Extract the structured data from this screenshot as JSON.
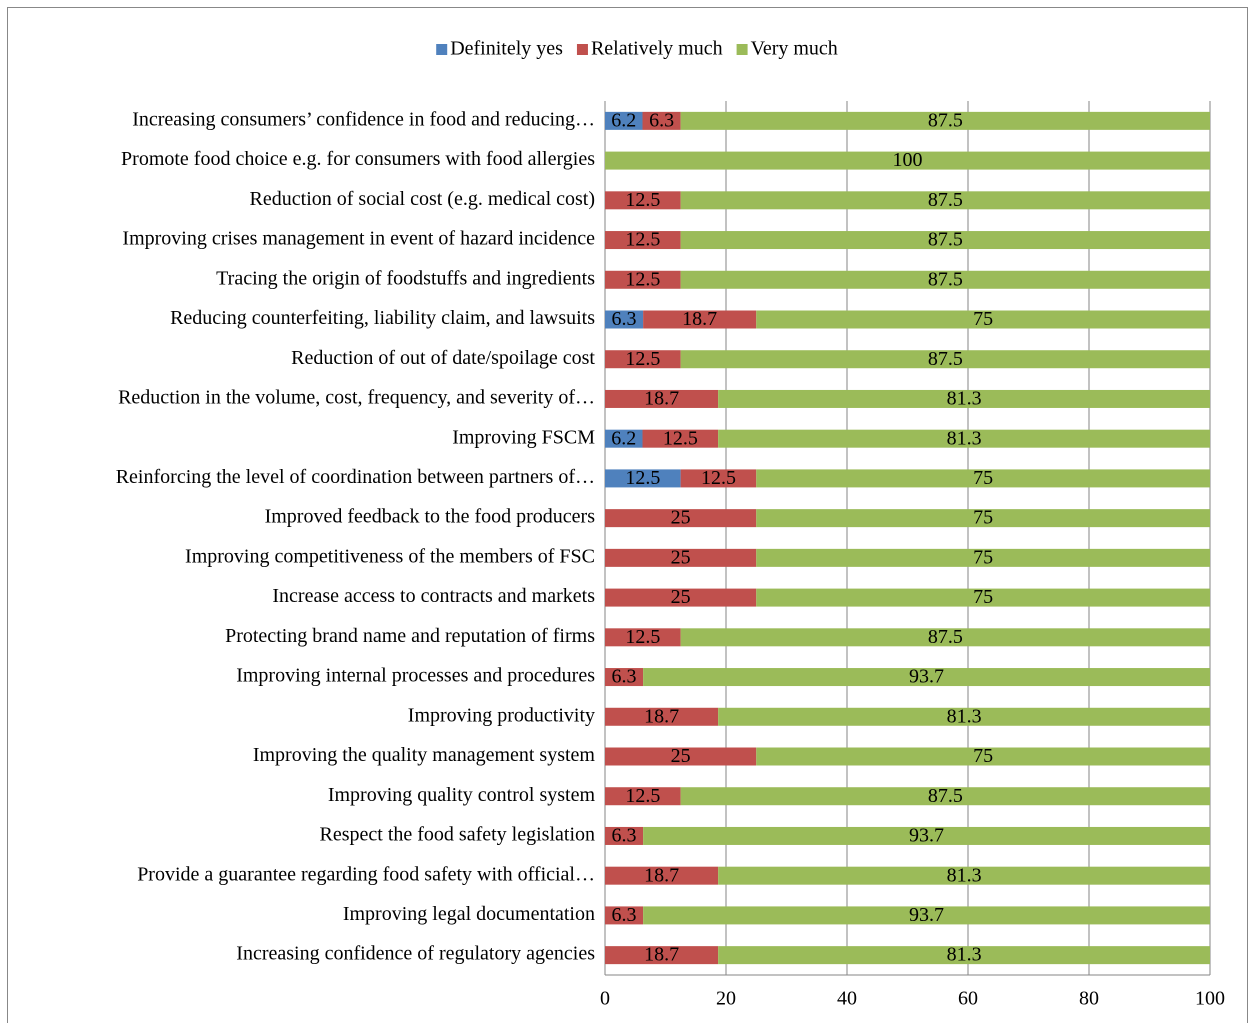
{
  "chart_data": {
    "type": "stacked-bar-horizontal",
    "categories": [
      "Increasing consumers’ confidence in food and reducing…",
      "Promote food choice e.g. for consumers with food allergies",
      "Reduction of social cost (e.g. medical cost)",
      "Improving crises management in event of hazard incidence",
      "Tracing the origin of foodstuffs and ingredients",
      "Reducing counterfeiting, liability claim, and lawsuits",
      "Reduction of out of date/spoilage cost",
      "Reduction in the volume, cost, frequency, and severity of…",
      "Improving FSCM",
      "Reinforcing the level of coordination between partners of…",
      "Improved feedback to the food producers",
      "Improving competitiveness of the members of FSC",
      "Increase access to contracts and markets",
      "Protecting brand name and reputation of firms",
      "Improving internal processes and procedures",
      "Improving productivity",
      "Improving the quality management system",
      "Improving quality control system",
      "Respect the food safety legislation",
      "Provide a guarantee regarding food safety with official…",
      "Improving legal documentation",
      "Increasing confidence of regulatory agencies"
    ],
    "series": [
      {
        "name": "Definitely yes",
        "color": "#4f81bd",
        "values": [
          6.2,
          0,
          0,
          0,
          0,
          6.3,
          0,
          0,
          6.2,
          12.5,
          0,
          0,
          0,
          0,
          0,
          0,
          0,
          0,
          0,
          0,
          0,
          0
        ]
      },
      {
        "name": "Relatively much",
        "color": "#c0504d",
        "values": [
          6.3,
          0,
          12.5,
          12.5,
          12.5,
          18.7,
          12.5,
          18.7,
          12.5,
          12.5,
          25,
          25,
          25,
          12.5,
          6.3,
          18.7,
          25,
          12.5,
          6.3,
          18.7,
          6.3,
          18.7
        ]
      },
      {
        "name": "Very much",
        "color": "#9bbb59",
        "values": [
          87.5,
          100,
          87.5,
          87.5,
          87.5,
          75,
          87.5,
          81.3,
          81.3,
          75,
          75,
          75,
          75,
          87.5,
          93.7,
          81.3,
          75,
          87.5,
          93.7,
          81.3,
          93.7,
          81.3
        ]
      }
    ],
    "xlim": [
      0,
      100
    ],
    "xticks": [
      0,
      20,
      40,
      60,
      80,
      100
    ],
    "grid": true,
    "legend": "top"
  }
}
